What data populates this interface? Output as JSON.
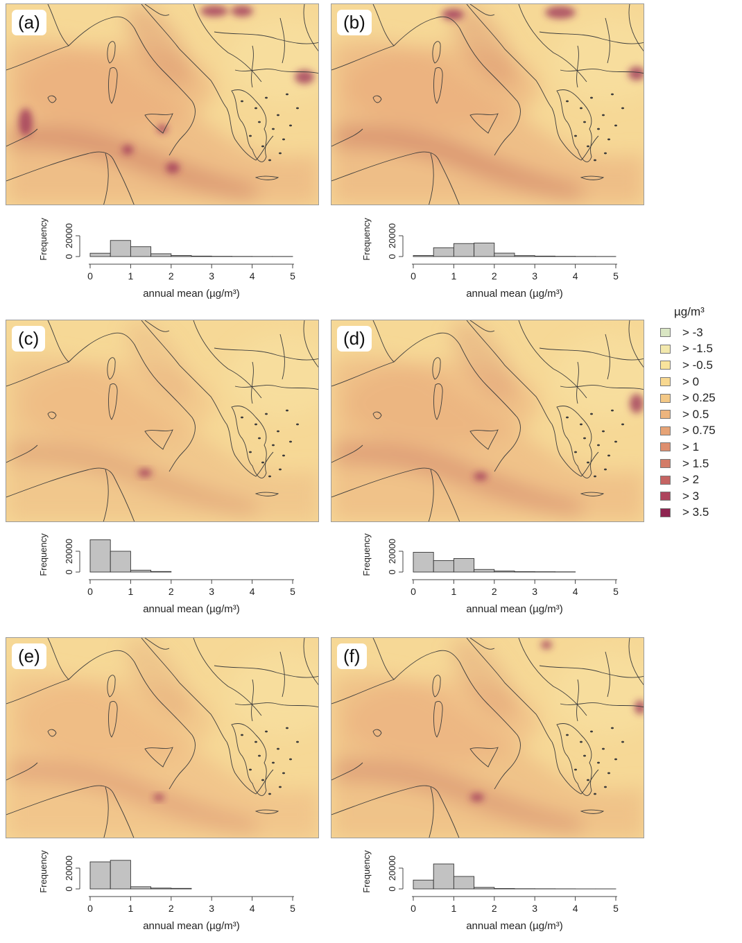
{
  "panels": [
    {
      "label": "(a)",
      "hist": {
        "values": [
          3200,
          15500,
          9500,
          2700,
          1000,
          450,
          250,
          150,
          100,
          100
        ],
        "ylabel": "Frequency",
        "ytick_label": "20000",
        "ytick_zero": "0",
        "xlabel": "annual mean (µg/m³)",
        "xticks": [
          "0",
          "1",
          "2",
          "3",
          "4",
          "5"
        ]
      }
    },
    {
      "label": "(b)",
      "hist": {
        "values": [
          1000,
          8500,
          12500,
          13000,
          3300,
          900,
          450,
          250,
          150,
          100
        ],
        "ylabel": "Frequency",
        "ytick_label": "20000",
        "ytick_zero": "0",
        "xlabel": "annual mean (µg/m³)",
        "xticks": [
          "0",
          "1",
          "2",
          "3",
          "4",
          "5"
        ]
      }
    },
    {
      "label": "(c)",
      "hist": {
        "values": [
          31000,
          20000,
          1800,
          500,
          0,
          0,
          0,
          0,
          0,
          0
        ],
        "ylabel": "Frequency",
        "ytick_label": "20000",
        "ytick_zero": "0",
        "xlabel": "annual mean (µg/m³)",
        "xticks": [
          "0",
          "1",
          "2",
          "3",
          "4",
          "5"
        ]
      }
    },
    {
      "label": "(d)",
      "hist": {
        "values": [
          19000,
          11000,
          13000,
          2500,
          1000,
          400,
          300,
          200,
          0,
          0
        ],
        "ylabel": "Frequency",
        "ytick_label": "20000",
        "ytick_zero": "0",
        "xlabel": "annual mean (µg/m³)",
        "xticks": [
          "0",
          "1",
          "2",
          "3",
          "4",
          "5"
        ]
      }
    },
    {
      "label": "(e)",
      "hist": {
        "values": [
          26000,
          27500,
          2100,
          800,
          500,
          0,
          0,
          0,
          0,
          0
        ],
        "ylabel": "Frequency",
        "ytick_label": "20000",
        "ytick_zero": "0",
        "xlabel": "annual mean (µg/m³)",
        "xticks": [
          "0",
          "1",
          "2",
          "3",
          "4",
          "5"
        ]
      }
    },
    {
      "label": "(f)",
      "hist": {
        "values": [
          8500,
          24000,
          12000,
          1500,
          400,
          200,
          150,
          100,
          50,
          50
        ],
        "ylabel": "Frequency",
        "ytick_label": "20000",
        "ytick_zero": "0",
        "xlabel": "annual mean (µg/m³)",
        "xticks": [
          "0",
          "1",
          "2",
          "3",
          "4",
          "5"
        ]
      }
    }
  ],
  "legend": {
    "title": "µg/m³",
    "items": [
      {
        "label": "> -3",
        "color": "#d9e6c3"
      },
      {
        "label": "> -1.5",
        "color": "#f2e8ad"
      },
      {
        "label": "> -0.5",
        "color": "#f8e39c"
      },
      {
        "label": "> 0",
        "color": "#f8d890"
      },
      {
        "label": "> 0.25",
        "color": "#f3c886"
      },
      {
        "label": "> 0.5",
        "color": "#edb57e"
      },
      {
        "label": "> 0.75",
        "color": "#e6a376"
      },
      {
        "label": "> 1",
        "color": "#de8f6f"
      },
      {
        "label": "> 1.5",
        "color": "#d37c68"
      },
      {
        "label": "> 2",
        "color": "#c56462"
      },
      {
        "label": "> 3",
        "color": "#ad445c"
      },
      {
        "label": "> 3.5",
        "color": "#8e2450"
      }
    ]
  },
  "map_style": {
    "land_base": "#f6d896",
    "sea_base": "#eebd86",
    "border_color": "#3b3b3b"
  }
}
